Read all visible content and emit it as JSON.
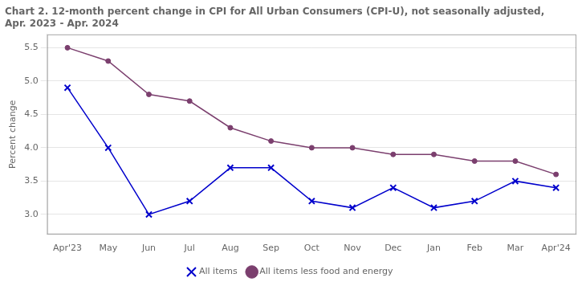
{
  "chart_data": {
    "type": "line",
    "title": "Chart 2. 12-month percent change in CPI for All Urban Consumers (CPI-U), not seasonally adjusted, Apr. 2023 - Apr. 2024",
    "ylabel": "Percent change",
    "categories": [
      "Apr'23",
      "May",
      "Jun",
      "Jul",
      "Aug",
      "Sep",
      "Oct",
      "Nov",
      "Dec",
      "Jan",
      "Feb",
      "Mar",
      "Apr'24"
    ],
    "series": [
      {
        "name": "All items",
        "color": "#0000cc",
        "marker": "x",
        "values": [
          4.9,
          4.0,
          3.0,
          3.2,
          3.7,
          3.7,
          3.2,
          3.1,
          3.4,
          3.1,
          3.2,
          3.5,
          3.4
        ]
      },
      {
        "name": "All items less food and energy",
        "color": "#7b3f6e",
        "marker": "o",
        "values": [
          5.5,
          5.3,
          4.8,
          4.7,
          4.3,
          4.1,
          4.0,
          4.0,
          3.9,
          3.9,
          3.8,
          3.8,
          3.6
        ]
      }
    ],
    "ylim": [
      2.7,
      5.7
    ],
    "yticks": [
      {
        "value": 3.0,
        "label": "3.0"
      },
      3.5,
      {
        "value": 4.0,
        "label": "4.0"
      },
      4.5,
      {
        "value": 5.0,
        "label": "5.0"
      },
      5.5
    ],
    "grid": "y",
    "legend": "bottom"
  }
}
